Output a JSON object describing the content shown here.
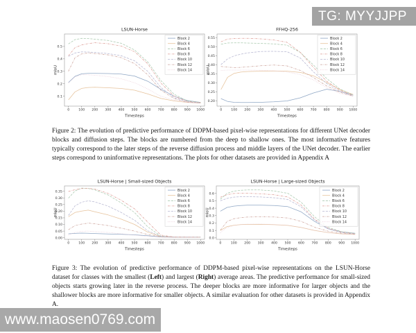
{
  "page": {
    "background": "#ffffff"
  },
  "watermark_top": {
    "label": "TG: MYYJJPP",
    "bg": "#a3a3a3",
    "fg": "#ffffff"
  },
  "watermark_bottom": {
    "label": "www.maosen0769.com",
    "bg": "#a8a8a8",
    "fg": "#ffffff"
  },
  "figure2_caption": "Figure 2: The evolution of predictive performance of DDPM-based pixel-wise representations for different UNet decoder blocks and diffusion steps. The blocks are numbered from the deep to shallow ones. The most informative features typically correspond to the later steps of the reverse diffusion process and middle layers of the UNet decoder. The earlier steps correspond to uninformative representations. The plots for other datasets are provided in Appendix A",
  "figure3_caption": {
    "p1": "Figure 3: The evolution of predictive performance of DDPM-based pixel-wise representations on the LSUN-Horse dataset for classes with the smallest (",
    "left": "Left",
    "p2": ") and largest (",
    "right": "Right",
    "p3": ") average areas. The predictive performance for small-sized objects starts growing later in the reverse process. The deeper blocks are more informative for larger objects and the shallower blocks are more informative for smaller objects. A similar evaluation for other datasets is provided in Appendix A."
  },
  "chart_data": [
    {
      "type": "line",
      "title": "LSUN-Horse",
      "xlabel": "Timesteps",
      "ylabel": "mIoU",
      "legend_position": "upper right",
      "grid": false,
      "xlim": [
        -30,
        1030
      ],
      "ylim": [
        0.02,
        0.6
      ],
      "xticks": [
        0,
        100,
        200,
        300,
        400,
        500,
        600,
        700,
        800,
        900,
        1000
      ],
      "yticks": [
        {
          "v": 0.1,
          "l": "0.1"
        },
        {
          "v": 0.2,
          "l": "0.2"
        },
        {
          "v": 0.3,
          "l": "0.3"
        },
        {
          "v": 0.4,
          "l": "0.4"
        },
        {
          "v": 0.5,
          "l": "0.5"
        }
      ],
      "x": [
        0,
        50,
        100,
        150,
        200,
        300,
        400,
        500,
        600,
        700,
        800,
        900,
        1000
      ],
      "series": [
        {
          "name": "Block 2",
          "color": "#8ea6c4",
          "dash": "solid",
          "values": [
            0.21,
            0.26,
            0.28,
            0.283,
            0.283,
            0.282,
            0.278,
            0.262,
            0.22,
            0.155,
            0.1,
            0.065,
            0.05
          ]
        },
        {
          "name": "Block 4",
          "color": "#e6c29b",
          "dash": "solid",
          "values": [
            0.07,
            0.135,
            0.163,
            0.17,
            0.172,
            0.168,
            0.162,
            0.148,
            0.118,
            0.082,
            0.062,
            0.05,
            0.045
          ]
        },
        {
          "name": "Block 6",
          "color": "#a9c9ae",
          "dash": "dash",
          "values": [
            0.52,
            0.555,
            0.565,
            0.563,
            0.558,
            0.548,
            0.525,
            0.472,
            0.375,
            0.225,
            0.115,
            0.062,
            0.05
          ]
        },
        {
          "name": "Block 8",
          "color": "#dd9b94",
          "dash": "dashdot",
          "values": [
            0.425,
            0.49,
            0.512,
            0.523,
            0.53,
            0.522,
            0.503,
            0.458,
            0.36,
            0.205,
            0.1,
            0.058,
            0.048
          ]
        },
        {
          "name": "Block 10",
          "color": "#b6b6d1",
          "dash": "dash",
          "values": [
            0.42,
            0.447,
            0.456,
            0.455,
            0.452,
            0.443,
            0.425,
            0.385,
            0.3,
            0.17,
            0.088,
            0.055,
            0.047
          ]
        },
        {
          "name": "Block 12",
          "color": "#cda49c",
          "dash": "dashdot",
          "values": [
            0.3,
            0.41,
            0.44,
            0.447,
            0.443,
            0.432,
            0.41,
            0.362,
            0.272,
            0.148,
            0.08,
            0.052,
            0.045
          ]
        },
        {
          "name": "Block 14",
          "color": "#e6c3d2",
          "dash": "dot",
          "values": [
            0.205,
            0.255,
            0.272,
            0.272,
            0.268,
            0.258,
            0.24,
            0.208,
            0.158,
            0.1,
            0.068,
            0.05,
            0.044
          ]
        }
      ]
    },
    {
      "type": "line",
      "title": "FFHQ-256",
      "xlabel": "Timesteps",
      "ylabel": "mIoU",
      "legend_position": "upper right",
      "grid": false,
      "xlim": [
        -30,
        1030
      ],
      "ylim": [
        0.17,
        0.57
      ],
      "xticks": [
        0,
        100,
        200,
        300,
        400,
        500,
        600,
        700,
        800,
        900,
        1000
      ],
      "yticks": [
        {
          "v": 0.2,
          "l": "0.20"
        },
        {
          "v": 0.25,
          "l": "0.25"
        },
        {
          "v": 0.3,
          "l": "0.30"
        },
        {
          "v": 0.35,
          "l": "0.35"
        },
        {
          "v": 0.4,
          "l": "0.40"
        },
        {
          "v": 0.45,
          "l": "0.45"
        },
        {
          "v": 0.5,
          "l": "0.50"
        },
        {
          "v": 0.55,
          "l": "0.55"
        }
      ],
      "x": [
        0,
        50,
        100,
        150,
        200,
        300,
        400,
        500,
        600,
        700,
        800,
        900,
        1000
      ],
      "series": [
        {
          "name": "Block 2",
          "color": "#8ea6c4",
          "dash": "solid",
          "values": [
            0.212,
            0.196,
            0.191,
            0.19,
            0.19,
            0.191,
            0.194,
            0.199,
            0.216,
            0.243,
            0.264,
            0.252,
            0.231
          ]
        },
        {
          "name": "Block 4",
          "color": "#e6c29b",
          "dash": "solid",
          "values": [
            0.262,
            0.33,
            0.352,
            0.359,
            0.362,
            0.364,
            0.365,
            0.364,
            0.357,
            0.338,
            0.301,
            0.262,
            0.235
          ]
        },
        {
          "name": "Block 6",
          "color": "#a9c9ae",
          "dash": "dash",
          "values": [
            0.513,
            0.52,
            0.521,
            0.521,
            0.52,
            0.518,
            0.515,
            0.508,
            0.468,
            0.398,
            0.323,
            0.265,
            0.232
          ]
        },
        {
          "name": "Block 8",
          "color": "#dd9b94",
          "dash": "dashdot",
          "values": [
            0.527,
            0.542,
            0.545,
            0.546,
            0.546,
            0.543,
            0.537,
            0.524,
            0.468,
            0.385,
            0.308,
            0.258,
            0.23
          ]
        },
        {
          "name": "Block 10",
          "color": "#b6b6d1",
          "dash": "dash",
          "values": [
            0.4,
            0.432,
            0.449,
            0.458,
            0.465,
            0.473,
            0.474,
            0.472,
            0.437,
            0.36,
            0.295,
            0.252,
            0.227
          ]
        },
        {
          "name": "Block 12",
          "color": "#cda49c",
          "dash": "dashdot",
          "values": [
            0.39,
            0.386,
            0.384,
            0.385,
            0.388,
            0.394,
            0.398,
            0.393,
            0.368,
            0.328,
            0.282,
            0.247,
            0.226
          ]
        },
        {
          "name": "Block 14",
          "color": "#e6c3d2",
          "dash": "dot",
          "values": [
            0.368,
            0.37,
            0.37,
            0.37,
            0.37,
            0.369,
            0.366,
            0.359,
            0.345,
            0.315,
            0.273,
            0.241,
            0.223
          ]
        }
      ]
    },
    {
      "type": "line",
      "title": "LSUN-Horse | Small-sized Objects",
      "xlabel": "Timesteps",
      "ylabel": "mIoU",
      "legend_position": "upper right",
      "grid": false,
      "xlim": [
        -30,
        1030
      ],
      "ylim": [
        -0.012,
        0.39
      ],
      "xticks": [
        0,
        100,
        200,
        300,
        400,
        500,
        600,
        700,
        800,
        900,
        1000
      ],
      "yticks": [
        {
          "v": 0.0,
          "l": "0.00"
        },
        {
          "v": 0.05,
          "l": "0.05"
        },
        {
          "v": 0.1,
          "l": "0.10"
        },
        {
          "v": 0.15,
          "l": "0.15"
        },
        {
          "v": 0.2,
          "l": "0.20"
        },
        {
          "v": 0.25,
          "l": "0.25"
        },
        {
          "v": 0.3,
          "l": "0.30"
        },
        {
          "v": 0.35,
          "l": "0.35"
        }
      ],
      "x": [
        0,
        50,
        100,
        150,
        200,
        300,
        400,
        500,
        600,
        700,
        800,
        900,
        1000
      ],
      "series": [
        {
          "name": "Block 2",
          "color": "#8ea6c4",
          "dash": "solid",
          "values": [
            0.03,
            0.033,
            0.035,
            0.034,
            0.032,
            0.028,
            0.026,
            0.022,
            0.015,
            0.006,
            0.004,
            0.004,
            0.004
          ]
        },
        {
          "name": "Block 4",
          "color": "#e6c29b",
          "dash": "solid",
          "values": [
            0.158,
            0.19,
            0.201,
            0.208,
            0.196,
            0.172,
            0.14,
            0.1,
            0.042,
            0.009,
            0.005,
            0.004,
            0.004
          ]
        },
        {
          "name": "Block 6",
          "color": "#a9c9ae",
          "dash": "dash",
          "values": [
            0.298,
            0.352,
            0.374,
            0.371,
            0.36,
            0.322,
            0.262,
            0.19,
            0.082,
            0.012,
            0.005,
            0.005,
            0.005
          ]
        },
        {
          "name": "Block 8",
          "color": "#dd9b94",
          "dash": "dashdot",
          "values": [
            0.348,
            0.362,
            0.37,
            0.372,
            0.366,
            0.334,
            0.282,
            0.218,
            0.118,
            0.02,
            0.006,
            0.005,
            0.005
          ]
        },
        {
          "name": "Block 10",
          "color": "#b6b6d1",
          "dash": "dash",
          "values": [
            0.168,
            0.24,
            0.268,
            0.278,
            0.27,
            0.238,
            0.19,
            0.132,
            0.052,
            0.01,
            0.005,
            0.005,
            0.005
          ]
        },
        {
          "name": "Block 12",
          "color": "#cda49c",
          "dash": "dashdot",
          "values": [
            0.06,
            0.092,
            0.103,
            0.11,
            0.105,
            0.092,
            0.072,
            0.05,
            0.024,
            0.007,
            0.004,
            0.004,
            0.004
          ]
        },
        {
          "name": "Block 14",
          "color": "#e6c3d2",
          "dash": "dot",
          "values": [
            0.02,
            0.04,
            0.048,
            0.05,
            0.046,
            0.04,
            0.03,
            0.02,
            0.01,
            0.005,
            0.003,
            0.003,
            0.003
          ]
        }
      ]
    },
    {
      "type": "line",
      "title": "LSUN-Horse | Large-sized Objects",
      "xlabel": "Timesteps",
      "ylabel": "mIoU",
      "legend_position": "upper right",
      "grid": false,
      "xlim": [
        -30,
        1030
      ],
      "ylim": [
        -0.02,
        0.7
      ],
      "xticks": [
        0,
        100,
        200,
        300,
        400,
        500,
        600,
        700,
        800,
        900,
        1000
      ],
      "yticks": [
        {
          "v": 0.0,
          "l": "0.0"
        },
        {
          "v": 0.1,
          "l": "0.1"
        },
        {
          "v": 0.2,
          "l": "0.2"
        },
        {
          "v": 0.3,
          "l": "0.3"
        },
        {
          "v": 0.4,
          "l": "0.4"
        },
        {
          "v": 0.5,
          "l": "0.5"
        },
        {
          "v": 0.6,
          "l": "0.6"
        }
      ],
      "x": [
        0,
        50,
        100,
        150,
        200,
        300,
        400,
        500,
        600,
        700,
        800,
        900,
        1000
      ],
      "series": [
        {
          "name": "Block 2",
          "color": "#8ea6c4",
          "dash": "solid",
          "values": [
            0.36,
            0.41,
            0.428,
            0.435,
            0.44,
            0.441,
            0.436,
            0.421,
            0.35,
            0.22,
            0.122,
            0.082,
            0.062
          ]
        },
        {
          "name": "Block 4",
          "color": "#e6c29b",
          "dash": "solid",
          "values": [
            0.1,
            0.152,
            0.17,
            0.178,
            0.181,
            0.182,
            0.177,
            0.168,
            0.14,
            0.1,
            0.072,
            0.054,
            0.046
          ]
        },
        {
          "name": "Block 6",
          "color": "#a9c9ae",
          "dash": "dash",
          "values": [
            0.52,
            0.6,
            0.63,
            0.641,
            0.646,
            0.646,
            0.632,
            0.601,
            0.48,
            0.282,
            0.142,
            0.083,
            0.06
          ]
        },
        {
          "name": "Block 8",
          "color": "#dd9b94",
          "dash": "dashdot",
          "values": [
            0.548,
            0.582,
            0.598,
            0.603,
            0.601,
            0.594,
            0.58,
            0.551,
            0.442,
            0.252,
            0.13,
            0.077,
            0.056
          ]
        },
        {
          "name": "Block 10",
          "color": "#b6b6d1",
          "dash": "dash",
          "values": [
            0.5,
            0.532,
            0.549,
            0.554,
            0.555,
            0.551,
            0.54,
            0.518,
            0.418,
            0.238,
            0.122,
            0.072,
            0.054
          ]
        },
        {
          "name": "Block 12",
          "color": "#cda49c",
          "dash": "dashdot",
          "values": [
            0.103,
            0.22,
            0.258,
            0.273,
            0.28,
            0.284,
            0.281,
            0.268,
            0.222,
            0.143,
            0.09,
            0.062,
            0.05
          ]
        },
        {
          "name": "Block 14",
          "color": "#e6c3d2",
          "dash": "dot",
          "values": [
            0.07,
            0.14,
            0.168,
            0.18,
            0.185,
            0.186,
            0.18,
            0.17,
            0.142,
            0.102,
            0.072,
            0.053,
            0.045
          ]
        }
      ]
    }
  ]
}
